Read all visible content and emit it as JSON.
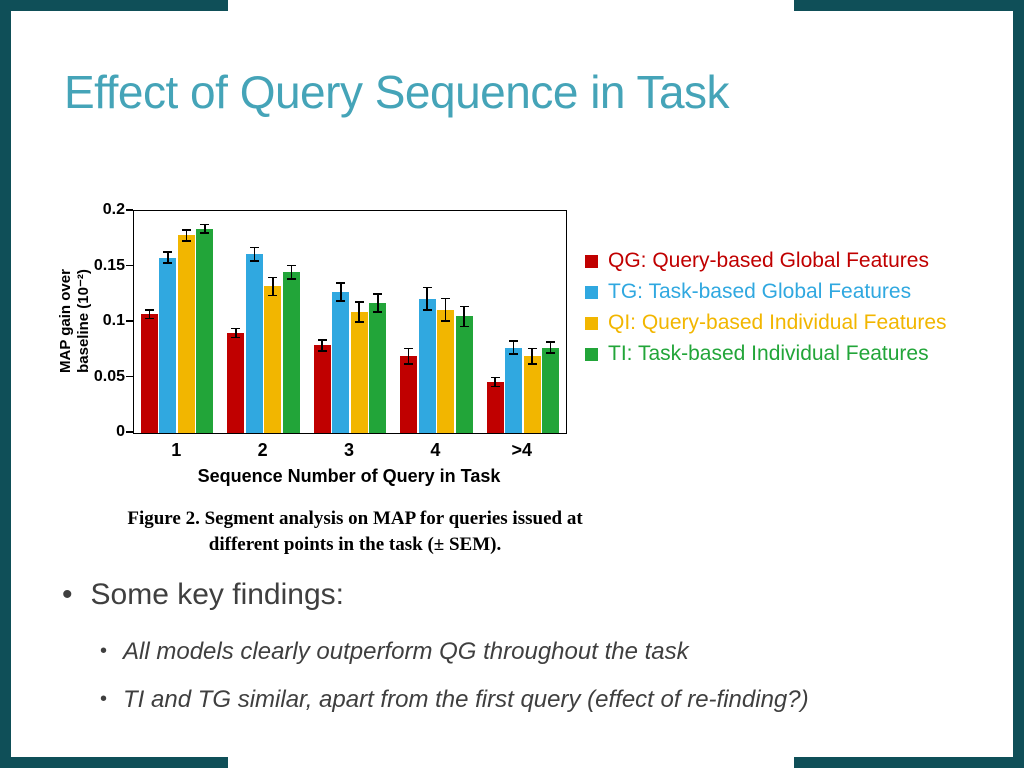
{
  "slide": {
    "title": "Effect of Query Sequence in Task",
    "accent_color": "#45a4b8",
    "frame_color": "#0f4f58"
  },
  "chart_data": {
    "type": "bar",
    "categories": [
      "1",
      "2",
      "3",
      "4",
      ">4"
    ],
    "series": [
      {
        "name": "QG",
        "label": "QG: Query-based Global Features",
        "color": "#c00000",
        "values": [
          0.107,
          0.09,
          0.079,
          0.069,
          0.046
        ],
        "errors": [
          0.004,
          0.004,
          0.005,
          0.007,
          0.004
        ]
      },
      {
        "name": "TG",
        "label": "TG: Task-based Global Features",
        "color": "#30a8e0",
        "values": [
          0.158,
          0.161,
          0.127,
          0.121,
          0.077
        ],
        "errors": [
          0.005,
          0.006,
          0.008,
          0.01,
          0.006
        ]
      },
      {
        "name": "QI",
        "label": "QI: Query-based Individual Features",
        "color": "#f2b600",
        "values": [
          0.178,
          0.132,
          0.109,
          0.111,
          0.069
        ],
        "errors": [
          0.005,
          0.008,
          0.009,
          0.01,
          0.007
        ]
      },
      {
        "name": "TI",
        "label": "TI: Task-based Individual Features",
        "color": "#22a539",
        "values": [
          0.184,
          0.145,
          0.117,
          0.105,
          0.077
        ],
        "errors": [
          0.004,
          0.006,
          0.008,
          0.009,
          0.005
        ]
      }
    ],
    "xlabel": "Sequence Number of Query in Task",
    "ylabel_line1": "MAP gain over",
    "ylabel_line2": "baseline (10⁻²)",
    "ylim": [
      0,
      0.2
    ],
    "yticks": [
      0,
      0.05,
      0.1,
      0.15,
      0.2
    ],
    "legend_position": "right",
    "grid": false
  },
  "caption": {
    "line1": "Figure 2. Segment analysis on MAP for queries issued at",
    "line2": "different points in the task (± SEM)."
  },
  "bullets": {
    "main": "Some key findings:",
    "subs": [
      "All models clearly outperform QG throughout the task",
      "TI and TG similar, apart from the first query (effect of re-finding?)"
    ]
  }
}
